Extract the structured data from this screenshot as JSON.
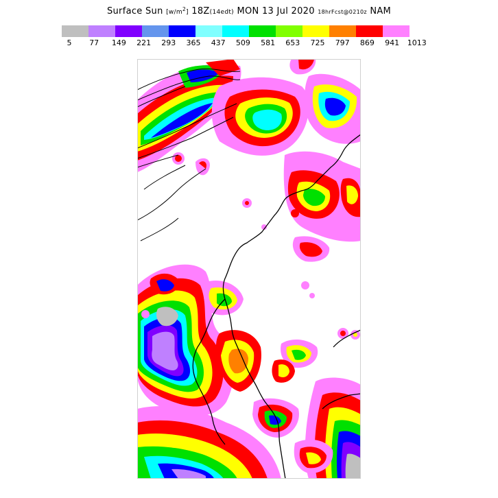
{
  "title": {
    "field": "Surface Sun",
    "units_base": "w/m",
    "units_power": "2",
    "valid_z": "18Z",
    "valid_local": "(14edt)",
    "date": "MON 13 Jul 2020",
    "forecast": "18hrFcst@0210z",
    "model": "NAM"
  },
  "colorbar": {
    "colors": [
      "#bfbfbf",
      "#bf80ff",
      "#8000ff",
      "#6495ed",
      "#0000ff",
      "#80ffff",
      "#00ffff",
      "#00e000",
      "#80ff00",
      "#ffff00",
      "#ff8000",
      "#ff0000",
      "#ff80ff"
    ],
    "labels": [
      "5",
      "77",
      "149",
      "221",
      "293",
      "365",
      "437",
      "509",
      "581",
      "653",
      "725",
      "797",
      "869",
      "941",
      "1013"
    ]
  }
}
